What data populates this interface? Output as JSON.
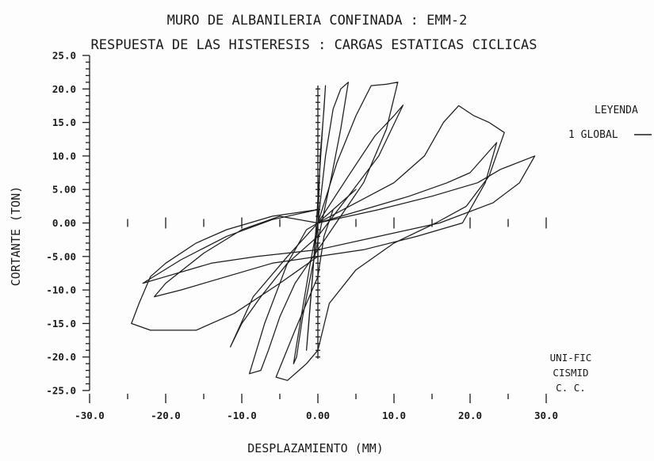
{
  "chart_data": {
    "type": "line",
    "title": "MURO DE ALBANILERIA CONFINADA  : EMM-2",
    "subtitle": "RESPUESTA DE LAS HISTERESIS : CARGAS ESTATICAS CICLICAS",
    "xlabel": "DESPLAZAMIENTO    (MM)",
    "ylabel": "CORTANTE   (TON)",
    "xlim": [
      -30,
      30
    ],
    "ylim": [
      -25,
      25
    ],
    "x_ticks": [
      -30,
      -20,
      -10,
      0,
      10,
      20,
      30
    ],
    "x_tick_labels": [
      "-30.0",
      "-20.0",
      "-10.0",
      "0.00",
      "10.0",
      "20.0",
      "30.0"
    ],
    "y_ticks": [
      25,
      20,
      15,
      10,
      5,
      0,
      -5,
      -10,
      -15,
      -20,
      -25
    ],
    "y_tick_labels": [
      "25.0",
      "20.0",
      "15.0",
      "10.0",
      "5.00",
      "0.00",
      "-5.00",
      "-10.0",
      "-15.0",
      "-20.0",
      "-25.0"
    ],
    "grid": false,
    "legend": {
      "title": "LEYENDA",
      "placement": "right",
      "entries": [
        "1 GLOBAL"
      ]
    },
    "series": [
      {
        "name": "1 GLOBAL",
        "loops": [
          [
            [
              0,
              0
            ],
            [
              0.3,
              10
            ],
            [
              0.8,
              17
            ],
            [
              1.0,
              20.5
            ],
            [
              0.6,
              14
            ],
            [
              0.2,
              7
            ],
            [
              -0.2,
              0
            ],
            [
              -0.7,
              -8
            ],
            [
              -1.2,
              -15
            ],
            [
              -1.5,
              -19
            ],
            [
              -1.0,
              -12
            ],
            [
              -0.5,
              -5
            ],
            [
              0,
              0
            ]
          ],
          [
            [
              0,
              0
            ],
            [
              1.0,
              10
            ],
            [
              2.0,
              17
            ],
            [
              3.0,
              20
            ],
            [
              4.0,
              21
            ],
            [
              3.0,
              14
            ],
            [
              1.8,
              7
            ],
            [
              0.5,
              0
            ],
            [
              -0.8,
              -7
            ],
            [
              -2.0,
              -14
            ],
            [
              -2.8,
              -20
            ],
            [
              -3.2,
              -21
            ],
            [
              -2.2,
              -14
            ],
            [
              -1.0,
              -6
            ],
            [
              0,
              0
            ]
          ],
          [
            [
              0,
              0
            ],
            [
              2.5,
              9
            ],
            [
              5.0,
              16
            ],
            [
              7.0,
              20.5
            ],
            [
              9.0,
              20.7
            ],
            [
              10.5,
              21
            ],
            [
              9.0,
              14
            ],
            [
              6.0,
              6
            ],
            [
              3.0,
              1
            ],
            [
              0,
              -4
            ],
            [
              -3.0,
              -9
            ],
            [
              -5.0,
              -14
            ],
            [
              -6.5,
              -19
            ],
            [
              -7.5,
              -22
            ],
            [
              -9.0,
              -22.5
            ],
            [
              -7.0,
              -15
            ],
            [
              -4.0,
              -6
            ],
            [
              -1.5,
              -1
            ],
            [
              0,
              0
            ]
          ],
          [
            [
              0,
              0
            ],
            [
              4.0,
              7
            ],
            [
              7.5,
              13
            ],
            [
              10.0,
              16
            ],
            [
              11.2,
              17.6
            ],
            [
              8.0,
              10
            ],
            [
              4.0,
              4
            ],
            [
              0,
              -2
            ],
            [
              -4.0,
              -6
            ],
            [
              -7.5,
              -11
            ],
            [
              -10.0,
              -15
            ],
            [
              -11.5,
              -18.5
            ],
            [
              -8.5,
              -11
            ],
            [
              -4.0,
              -5
            ],
            [
              0,
              0
            ]
          ],
          [
            [
              0,
              0
            ],
            [
              5.0,
              3
            ],
            [
              10.0,
              6
            ],
            [
              14.0,
              10
            ],
            [
              16.5,
              15
            ],
            [
              18.5,
              17.5
            ],
            [
              20.5,
              16
            ],
            [
              22.5,
              15
            ],
            [
              24.5,
              13.5
            ],
            [
              22.5,
              7
            ],
            [
              19.5,
              2.5
            ],
            [
              15.5,
              0
            ],
            [
              10.0,
              -3
            ],
            [
              5.0,
              -7
            ],
            [
              1.5,
              -12
            ],
            [
              0,
              -19
            ],
            [
              -1.5,
              -21
            ],
            [
              -4.0,
              -23.5
            ],
            [
              -5.5,
              -23
            ],
            [
              -3.0,
              -16
            ],
            [
              0,
              -8
            ],
            [
              0.8,
              -2
            ],
            [
              2.0,
              2
            ],
            [
              5.0,
              5
            ],
            [
              0,
              0
            ]
          ],
          [
            [
              0,
              0
            ],
            [
              6.0,
              2
            ],
            [
              12.0,
              4
            ],
            [
              17.0,
              6
            ],
            [
              20.0,
              7.5
            ],
            [
              23.5,
              12
            ],
            [
              22.0,
              6
            ],
            [
              19.0,
              0
            ],
            [
              13.0,
              -2
            ],
            [
              6.0,
              -4
            ],
            [
              0,
              -5
            ],
            [
              -6.0,
              -6
            ],
            [
              -12.0,
              -8
            ],
            [
              -18.0,
              -10
            ],
            [
              -21.5,
              -11
            ],
            [
              -20.0,
              -9
            ],
            [
              -15.0,
              -4.5
            ],
            [
              -10.0,
              -1
            ],
            [
              -5.0,
              1
            ],
            [
              0,
              0
            ]
          ],
          [
            [
              0,
              0
            ],
            [
              8.0,
              2
            ],
            [
              15.0,
              4
            ],
            [
              21.0,
              6
            ],
            [
              24.0,
              8
            ],
            [
              28.5,
              10
            ],
            [
              26.5,
              6
            ],
            [
              23.0,
              3
            ],
            [
              16.0,
              0
            ],
            [
              8.0,
              -2
            ],
            [
              0,
              -4
            ],
            [
              -8.0,
              -5
            ],
            [
              -14.0,
              -6
            ],
            [
              -20.0,
              -8
            ],
            [
              -23.0,
              -9
            ],
            [
              -18.0,
              -5.5
            ],
            [
              -12.0,
              -2
            ],
            [
              -6.0,
              0.5
            ],
            [
              0,
              2
            ]
          ],
          [
            [
              0,
              2
            ],
            [
              -6.0,
              1
            ],
            [
              -12.0,
              -1
            ],
            [
              -16.0,
              -3
            ],
            [
              -20.0,
              -6
            ],
            [
              -22.0,
              -8
            ],
            [
              -23.5,
              -12
            ],
            [
              -24.5,
              -15
            ],
            [
              -22.0,
              -16
            ],
            [
              -16.0,
              -16
            ],
            [
              -11.0,
              -13.5
            ],
            [
              -5.0,
              -9
            ],
            [
              0,
              -5
            ],
            [
              0,
              0
            ]
          ]
        ]
      }
    ],
    "annotations": [
      "UNI-FIC",
      "CISMID",
      "C. C."
    ]
  }
}
